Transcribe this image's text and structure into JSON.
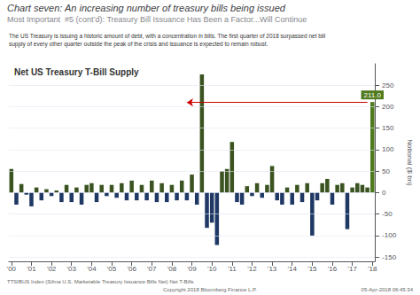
{
  "chart_data": {
    "type": "bar",
    "title": "Chart seven: An increasing number of treasury bills being issued",
    "subtitle": "Most Important  #5 (cont’d): Treasury Bill Issuance Has Been a Factor...Will Continue",
    "annotation": "The US Treasury is issuing a historic amount of debt, with a concentration in bills. The first quarter of 2018 surpassed net bill\nsupply of every other quarter outside the peak of the crisis and issuance is expected to remain robust.",
    "chart_label": "Net US Treasury T-Bill Supply",
    "ylabel": "Notional ($ bn)",
    "notes": [
      "TTSIBUS Index (Sifma U.S. Marketable Treasury Issuance Bills Net) Net T-Bills",
      "Copyright 2018 Bloomberg Finance L.P.",
      "05-Apr-2018 06:45:34"
    ],
    "categories": [
      "'00",
      null,
      null,
      null,
      "'01",
      null,
      null,
      null,
      "'02",
      null,
      null,
      null,
      "'03",
      null,
      null,
      null,
      "'04",
      null,
      null,
      null,
      "'05",
      null,
      null,
      null,
      "'06",
      null,
      null,
      null,
      "'07",
      null,
      null,
      null,
      "'08",
      null,
      null,
      null,
      "'09",
      null,
      null,
      null,
      "'10",
      null,
      null,
      null,
      "'11",
      null,
      null,
      null,
      "'12",
      null,
      null,
      null,
      "'13",
      null,
      null,
      null,
      "'14",
      null,
      null,
      null,
      "'15",
      null,
      null,
      null,
      "'16",
      null,
      null,
      null,
      "'17",
      null,
      null,
      null,
      "'18"
    ],
    "values": [
      55,
      -28,
      20,
      -5,
      -32,
      12,
      -18,
      8,
      -8,
      5,
      -22,
      18,
      -22,
      12,
      -28,
      18,
      22,
      -22,
      18,
      -8,
      18,
      -12,
      22,
      -18,
      28,
      -18,
      18,
      -18,
      28,
      -22,
      22,
      -22,
      18,
      -18,
      28,
      -18,
      42,
      -28,
      275,
      -82,
      -70,
      -122,
      50,
      55,
      118,
      -22,
      -28,
      15,
      -8,
      22,
      -12,
      18,
      62,
      -18,
      -28,
      12,
      -28,
      18,
      -22,
      22,
      -100,
      -18,
      22,
      32,
      -28,
      18,
      22,
      -85,
      12,
      22,
      18,
      12,
      211
    ],
    "value_labels": [
      null,
      null,
      null,
      null,
      null,
      null,
      null,
      null,
      null,
      null,
      null,
      null,
      null,
      null,
      null,
      null,
      null,
      null,
      null,
      null,
      null,
      null,
      null,
      null,
      null,
      null,
      null,
      null,
      null,
      null,
      null,
      null,
      null,
      null,
      null,
      null,
      null,
      null,
      null,
      null,
      null,
      null,
      null,
      null,
      null,
      null,
      null,
      null,
      null,
      null,
      null,
      null,
      null,
      null,
      null,
      null,
      null,
      null,
      null,
      null,
      null,
      null,
      null,
      null,
      null,
      null,
      null,
      null,
      null,
      null,
      null,
      null,
      "211.0"
    ],
    "colors": [
      "#3a5320",
      "#1f3864",
      "#3a5320",
      "#1f3864",
      "#1f3864",
      "#3a5320",
      "#1f3864",
      "#3a5320",
      "#1f3864",
      "#3a5320",
      "#1f3864",
      "#3a5320",
      "#1f3864",
      "#3a5320",
      "#1f3864",
      "#3a5320",
      "#3a5320",
      "#1f3864",
      "#3a5320",
      "#1f3864",
      "#3a5320",
      "#1f3864",
      "#3a5320",
      "#1f3864",
      "#3a5320",
      "#1f3864",
      "#3a5320",
      "#1f3864",
      "#3a5320",
      "#1f3864",
      "#3a5320",
      "#1f3864",
      "#3a5320",
      "#1f3864",
      "#3a5320",
      "#1f3864",
      "#3a5320",
      "#1f3864",
      "#3a5320",
      "#1f3864",
      "#1f3864",
      "#1f3864",
      "#3a5320",
      "#3a5320",
      "#3a5320",
      "#1f3864",
      "#1f3864",
      "#3a5320",
      "#1f3864",
      "#3a5320",
      "#1f3864",
      "#3a5320",
      "#3a5320",
      "#1f3864",
      "#1f3864",
      "#3a5320",
      "#1f3864",
      "#3a5320",
      "#1f3864",
      "#3a5320",
      "#1f3864",
      "#1f3864",
      "#3a5320",
      "#3a5320",
      "#1f3864",
      "#3a5320",
      "#3a5320",
      "#1f3864",
      "#3a5320",
      "#3a5320",
      "#3a5320",
      "#3a5320",
      "#4f7a1e"
    ],
    "arrow": {
      "y": 210,
      "x_from": 71,
      "x_to": 35,
      "color": "#cc0000"
    },
    "ylim": [
      -160,
      300
    ],
    "yticks": [
      -150,
      -100,
      -50,
      0,
      50,
      100,
      150,
      200,
      250
    ],
    "grid": true
  }
}
